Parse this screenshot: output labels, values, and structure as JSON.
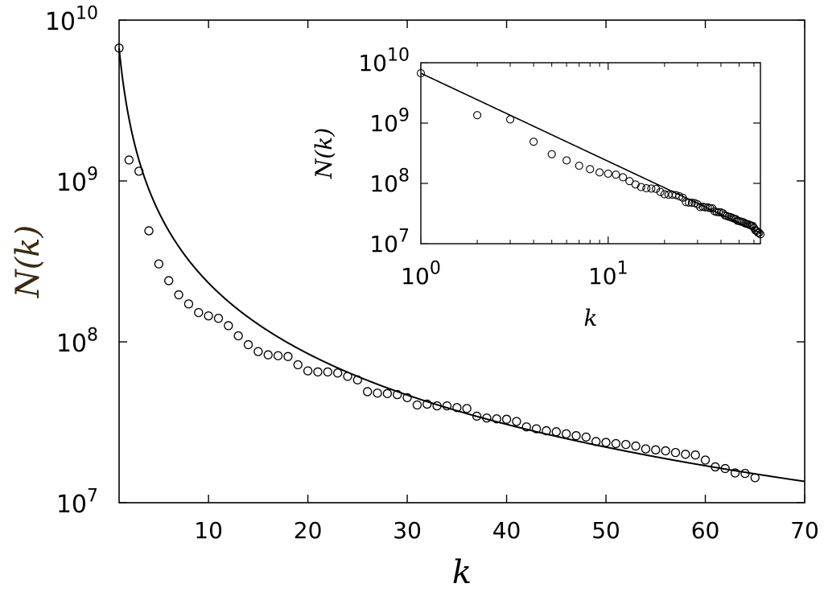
{
  "chart_data": [
    {
      "id": "main",
      "type": "scatter",
      "xlabel": "k",
      "ylabel": "N(k)",
      "xscale": "linear",
      "yscale": "log",
      "xlim": [
        1,
        70
      ],
      "ylim": [
        10000000,
        10000000000
      ],
      "xticks": [
        10,
        20,
        30,
        40,
        50,
        60,
        70
      ],
      "xtick_labels": [
        "10",
        "20",
        "30",
        "40",
        "50",
        "60",
        "70"
      ],
      "yticks": [
        10000000,
        100000000,
        1000000000,
        10000000000
      ],
      "ytick_labels": [
        {
          "base": "10",
          "exp": "7"
        },
        {
          "base": "10",
          "exp": "8"
        },
        {
          "base": "10",
          "exp": "9"
        },
        {
          "base": "10",
          "exp": "10"
        }
      ],
      "grid": false,
      "series": [
        {
          "marker": "open-circle",
          "x": [
            1,
            2,
            3,
            4,
            5,
            6,
            7,
            8,
            9,
            10,
            11,
            12,
            13,
            14,
            15,
            16,
            17,
            18,
            19,
            20,
            21,
            22,
            23,
            24,
            25,
            26,
            27,
            28,
            29,
            30,
            31,
            32,
            33,
            34,
            35,
            36,
            37,
            38,
            39,
            40,
            41,
            42,
            43,
            44,
            45,
            46,
            47,
            48,
            49,
            50,
            51,
            52,
            53,
            54,
            55,
            56,
            57,
            58,
            59,
            60,
            61,
            62,
            63,
            64,
            65
          ],
          "y": [
            6700000000,
            1350000000,
            1150000000,
            490000000,
            305000000,
            240000000,
            196000000,
            172000000,
            152000000,
            145000000,
            140000000,
            126000000,
            109000000,
            96000000,
            87000000,
            83000000,
            82000000,
            81000000,
            72000000,
            66000000,
            65000000,
            65000000,
            64000000,
            61000000,
            58000000,
            49000000,
            48000000,
            47700000,
            47000000,
            45000000,
            40500000,
            41000000,
            40000000,
            40000000,
            39000000,
            38500000,
            34500000,
            33600000,
            33200000,
            33000000,
            32000000,
            29600000,
            28800000,
            28000000,
            27600000,
            26800000,
            26100000,
            25600000,
            24000000,
            23700000,
            23300000,
            23000000,
            22500000,
            21600000,
            21300000,
            21000000,
            20500000,
            20000000,
            19800000,
            18400000,
            16700000,
            16300000,
            15300000,
            15200000,
            14300000
          ]
        },
        {
          "marker": "line",
          "formula": "N(k) = 6.7e9 * k^(-1.46)"
        }
      ]
    },
    {
      "id": "inset",
      "type": "scatter",
      "xlabel": "k",
      "ylabel": "N(k)",
      "xscale": "log",
      "yscale": "log",
      "xlim": [
        1,
        65
      ],
      "ylim": [
        10000000,
        10000000000
      ],
      "xticks": [
        1,
        10
      ],
      "xtick_labels": [
        {
          "base": "10",
          "exp": "0"
        },
        {
          "base": "10",
          "exp": "1"
        }
      ],
      "yticks": [
        10000000,
        100000000,
        1000000000,
        10000000000
      ],
      "ytick_labels": [
        {
          "base": "10",
          "exp": "7"
        },
        {
          "base": "10",
          "exp": "8"
        },
        {
          "base": "10",
          "exp": "9"
        },
        {
          "base": "10",
          "exp": "10"
        }
      ],
      "grid": false,
      "note": "same data as main plot on log-log axes"
    }
  ]
}
